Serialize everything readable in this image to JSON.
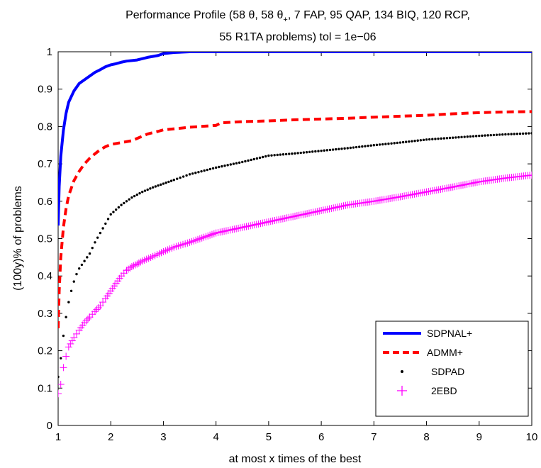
{
  "chart_data": {
    "type": "line",
    "title_line1_prefix": "Performance Profile (58  ",
    "title_line1_theta1": "θ",
    "title_line1_mid": ", 58 ",
    "title_line1_theta2": "θ",
    "title_line1_sub": "+",
    "title_line1_suffix": ", 7 FAP, 95 QAP, 134 BIQ, 120 RCP,",
    "title_line2": "55 R1TA problems) tol = 1e−06",
    "xlabel": "at most x times of the best",
    "ylabel": "(100y)% of problems",
    "xlim": [
      1,
      10
    ],
    "ylim": [
      0,
      1
    ],
    "x_ticks": [
      "1",
      "2",
      "3",
      "4",
      "5",
      "6",
      "7",
      "8",
      "9",
      "10"
    ],
    "y_ticks": [
      "0",
      "0.1",
      "0.2",
      "0.3",
      "0.4",
      "0.5",
      "0.6",
      "0.7",
      "0.8",
      "0.9",
      "1"
    ],
    "grid": false,
    "legend_position": "bottom-right",
    "series": [
      {
        "name": "SDPNAL+",
        "style": "solid",
        "color": "#0000ff",
        "x": [
          1.0,
          1.02,
          1.05,
          1.1,
          1.15,
          1.2,
          1.3,
          1.4,
          1.5,
          1.6,
          1.7,
          1.8,
          1.9,
          2.0,
          2.1,
          2.2,
          2.3,
          2.5,
          2.7,
          2.9,
          3.0,
          3.2,
          3.5,
          4.0,
          5.0,
          6.0,
          7.0,
          8.0,
          9.0,
          10.0
        ],
        "y": [
          0.535,
          0.64,
          0.72,
          0.79,
          0.835,
          0.865,
          0.895,
          0.915,
          0.925,
          0.935,
          0.945,
          0.952,
          0.96,
          0.965,
          0.968,
          0.972,
          0.975,
          0.978,
          0.985,
          0.99,
          0.995,
          0.998,
          1.0,
          1.0,
          1.0,
          1.0,
          1.0,
          1.0,
          1.0,
          1.0
        ]
      },
      {
        "name": "ADMM+",
        "style": "dashed",
        "color": "#ff0000",
        "x": [
          1.0,
          1.02,
          1.05,
          1.1,
          1.15,
          1.2,
          1.3,
          1.4,
          1.5,
          1.6,
          1.7,
          1.8,
          1.9,
          2.0,
          2.2,
          2.4,
          2.5,
          2.7,
          2.9,
          3.0,
          3.3,
          3.5,
          4.0,
          4.1,
          4.5,
          5.0,
          5.5,
          6.0,
          6.5,
          7.0,
          8.0,
          8.5,
          9.0,
          9.5,
          10.0
        ],
        "y": [
          0.26,
          0.36,
          0.45,
          0.53,
          0.58,
          0.615,
          0.655,
          0.68,
          0.7,
          0.715,
          0.727,
          0.738,
          0.746,
          0.752,
          0.757,
          0.762,
          0.768,
          0.78,
          0.787,
          0.791,
          0.795,
          0.798,
          0.803,
          0.81,
          0.813,
          0.815,
          0.818,
          0.82,
          0.822,
          0.825,
          0.83,
          0.834,
          0.837,
          0.839,
          0.84
        ]
      },
      {
        "name": "SDPAD",
        "style": "dots",
        "color": "#000000",
        "x": [
          1.0,
          1.05,
          1.1,
          1.15,
          1.2,
          1.25,
          1.3,
          1.35,
          1.4,
          1.5,
          1.6,
          1.7,
          1.8,
          1.9,
          2.0,
          2.2,
          2.4,
          2.6,
          2.8,
          3.0,
          3.2,
          3.5,
          4.0,
          4.5,
          5.0,
          5.5,
          6.0,
          6.5,
          7.0,
          7.5,
          8.0,
          8.5,
          9.0,
          9.5,
          10.0
        ],
        "y": [
          0.13,
          0.18,
          0.24,
          0.29,
          0.33,
          0.36,
          0.385,
          0.405,
          0.42,
          0.44,
          0.46,
          0.49,
          0.515,
          0.54,
          0.565,
          0.59,
          0.61,
          0.625,
          0.637,
          0.647,
          0.657,
          0.672,
          0.69,
          0.705,
          0.722,
          0.728,
          0.735,
          0.742,
          0.75,
          0.757,
          0.765,
          0.77,
          0.775,
          0.779,
          0.782
        ]
      },
      {
        "name": "2EBD",
        "style": "plus",
        "color": "#ff00ff",
        "x": [
          1.0,
          1.05,
          1.1,
          1.15,
          1.2,
          1.3,
          1.4,
          1.5,
          1.6,
          1.7,
          1.8,
          1.9,
          2.0,
          2.1,
          2.2,
          2.3,
          2.4,
          2.5,
          2.6,
          2.8,
          3.0,
          3.2,
          3.5,
          4.0,
          4.5,
          5.0,
          5.5,
          6.0,
          6.5,
          7.0,
          7.5,
          8.0,
          8.5,
          9.0,
          9.5,
          10.0
        ],
        "y": [
          0.085,
          0.11,
          0.155,
          0.185,
          0.21,
          0.235,
          0.255,
          0.275,
          0.29,
          0.305,
          0.32,
          0.34,
          0.36,
          0.38,
          0.4,
          0.415,
          0.425,
          0.432,
          0.44,
          0.452,
          0.465,
          0.477,
          0.49,
          0.515,
          0.53,
          0.545,
          0.56,
          0.575,
          0.59,
          0.6,
          0.612,
          0.625,
          0.638,
          0.652,
          0.662,
          0.67
        ]
      }
    ]
  }
}
